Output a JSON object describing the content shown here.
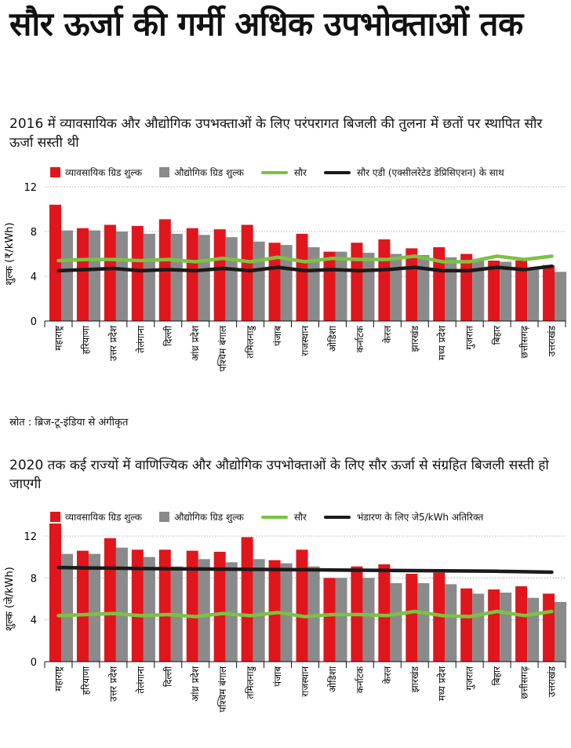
{
  "title": "सौर ऊर्जा की गर्मी अधिक उपभोक्ताओं तक",
  "source": "स्रोत : ब्रिज-टू-इंडिया से अंगीकृत",
  "colors": {
    "commercial": "#e0161c",
    "industrial": "#8a8a8a",
    "solar": "#7cc242",
    "black": "#1a1a1a"
  },
  "chart_data": [
    {
      "type": "bar",
      "subtitle": "2016 में व्यावसायिक और औद्योगिक उपभक्ताओं के लिए परंपरागत बिजली की तुलना में छतों पर स्थापित सौर ऊर्जा सस्ती थी",
      "ylabel": "शुल्क (₹/kWh)",
      "ylim": [
        0,
        12
      ],
      "yticks": [
        0,
        4,
        8,
        12
      ],
      "legend": [
        "व्यावसायिक ग्रिड शुल्क",
        "औद्योगिक ग्रिड शुल्क",
        "सौर",
        "सौर एडी (एक्सीलरेटेड डेप्रिसिएशन) के साथ"
      ],
      "categories": [
        "महाराष्ट्र",
        "हरियाणा",
        "उत्तर प्रदेश",
        "तेलंगाना",
        "दिल्ली",
        "आंध्र प्रदेश",
        "पश्चिम बंगाल",
        "तमिलनाडु",
        "पंजाब",
        "राजस्थान",
        "ओडिशा",
        "कर्नाटक",
        "केरल",
        "झारखंड",
        "मध्य प्रदेश",
        "गुजरात",
        "बिहार",
        "छत्तीसगढ़",
        "उत्तराखंड"
      ],
      "series": [
        {
          "name": "व्यावसायिक ग्रिड शुल्क",
          "kind": "bar",
          "values": [
            10.4,
            8.3,
            8.6,
            8.5,
            9.1,
            8.3,
            8.2,
            8.6,
            7.0,
            7.8,
            6.2,
            7.0,
            7.3,
            6.5,
            6.6,
            6.0,
            5.4,
            5.4,
            5.0
          ]
        },
        {
          "name": "औद्योगिक ग्रिड शुल्क",
          "kind": "bar",
          "values": [
            8.1,
            8.1,
            8.0,
            7.8,
            7.8,
            7.7,
            7.5,
            7.1,
            6.8,
            6.6,
            6.2,
            6.1,
            6.0,
            5.9,
            5.7,
            5.5,
            5.3,
            4.6,
            4.4
          ]
        },
        {
          "name": "सौर",
          "kind": "line",
          "values": [
            5.4,
            5.5,
            5.5,
            5.4,
            5.5,
            5.3,
            5.6,
            5.3,
            5.7,
            5.3,
            5.6,
            5.5,
            5.5,
            5.8,
            5.3,
            5.3,
            5.8,
            5.5,
            5.8
          ]
        },
        {
          "name": "सौर एडी (एक्सीलरेटेड डेप्रिसिएशन) के साथ",
          "kind": "line",
          "values": [
            4.5,
            4.6,
            4.7,
            4.5,
            4.6,
            4.5,
            4.7,
            4.5,
            4.8,
            4.5,
            4.6,
            4.5,
            4.6,
            4.8,
            4.5,
            4.5,
            4.8,
            4.6,
            4.9
          ]
        }
      ]
    },
    {
      "type": "bar",
      "subtitle": "2020 तक कई राज्यों में वाणिज्यिक और औद्योगिक उपभोक्ताओं के लिए सौर ऊर्जा से संग्रहित बिजली सस्ती हो जाएगी",
      "ylabel": "शुल्क (जे/kWh)",
      "ylim": [
        0,
        13
      ],
      "yticks": [
        0,
        4,
        8,
        12
      ],
      "legend": [
        "व्यावसायिक ग्रिड शुल्क",
        "औद्योगिक ग्रिड शुल्क",
        "सौर",
        "भंडारण के लिए जे5/kWh अतिरिक्त"
      ],
      "categories": [
        "महाराष्ट्र",
        "हरियाणा",
        "उत्तर प्रदेश",
        "तेलंगाना",
        "दिल्ली",
        "आंध्र प्रदेश",
        "पश्चिम बंगाल",
        "तमिलनाडु",
        "पंजाब",
        "राजस्थान",
        "ओडिशा",
        "कर्नाटक",
        "केरल",
        "झारखंड",
        "मध्य प्रदेश",
        "गुजरात",
        "बिहार",
        "छत्तीसगढ़",
        "उत्तराखंड"
      ],
      "series": [
        {
          "name": "व्यावसायिक ग्रिड शुल्क",
          "kind": "bar",
          "values": [
            13.2,
            10.6,
            11.8,
            10.7,
            10.7,
            10.6,
            10.5,
            11.9,
            9.7,
            10.7,
            8.0,
            9.1,
            9.3,
            8.4,
            8.5,
            7.0,
            6.9,
            7.2,
            6.5
          ]
        },
        {
          "name": "औद्योगिक ग्रिड शुल्क",
          "kind": "bar",
          "values": [
            10.3,
            10.3,
            10.9,
            10.0,
            9.1,
            9.8,
            9.5,
            9.8,
            9.4,
            9.1,
            8.0,
            8.0,
            7.5,
            7.5,
            7.4,
            6.5,
            6.6,
            6.1,
            5.7
          ]
        },
        {
          "name": "सौर",
          "kind": "line",
          "values": [
            4.4,
            4.5,
            4.6,
            4.4,
            4.5,
            4.3,
            4.6,
            4.4,
            4.7,
            4.3,
            4.5,
            4.5,
            4.4,
            4.8,
            4.4,
            4.3,
            4.8,
            4.4,
            4.8
          ]
        },
        {
          "name": "भंडारण के लिए जे5/kWh अतिरिक्त",
          "kind": "line",
          "values": [
            9.0,
            8.95,
            8.93,
            8.9,
            8.88,
            8.86,
            8.84,
            8.82,
            8.8,
            8.78,
            8.76,
            8.74,
            8.72,
            8.7,
            8.68,
            8.66,
            8.64,
            8.6,
            8.55
          ]
        }
      ]
    }
  ]
}
